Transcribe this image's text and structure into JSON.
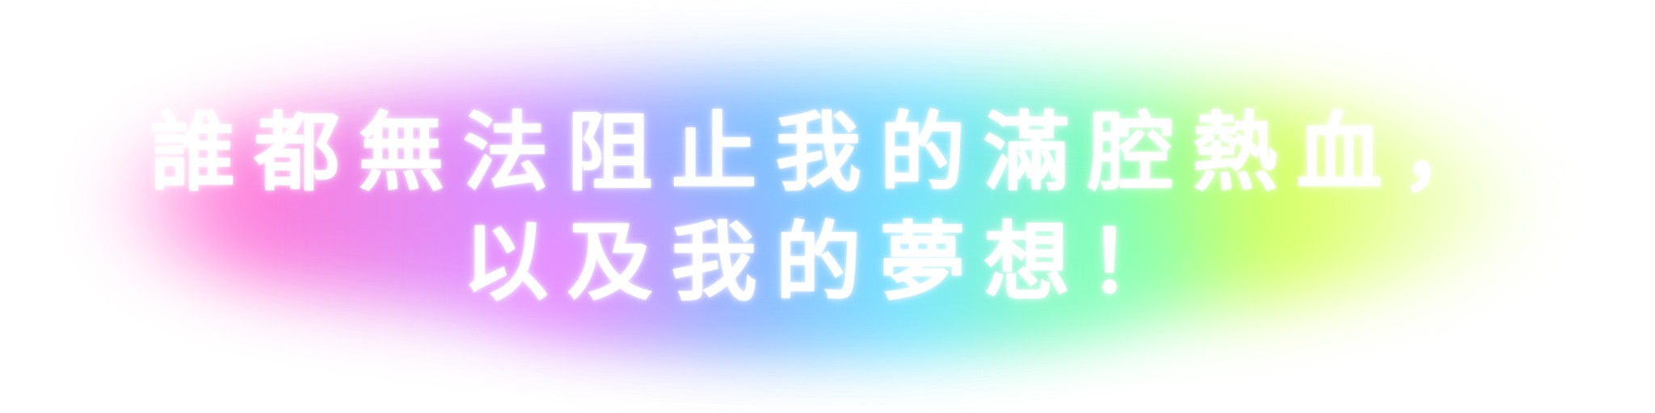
{
  "text": {
    "line1": "誰都無法阻止我的滿腔熱血，",
    "line2": "以及我的夢想！"
  },
  "colors": {
    "text": "#ffffff",
    "glow": [
      "#ff7ad9",
      "#d98cff",
      "#7eb8ff",
      "#74e3ff",
      "#7dffb3",
      "#d8ff5a"
    ]
  }
}
